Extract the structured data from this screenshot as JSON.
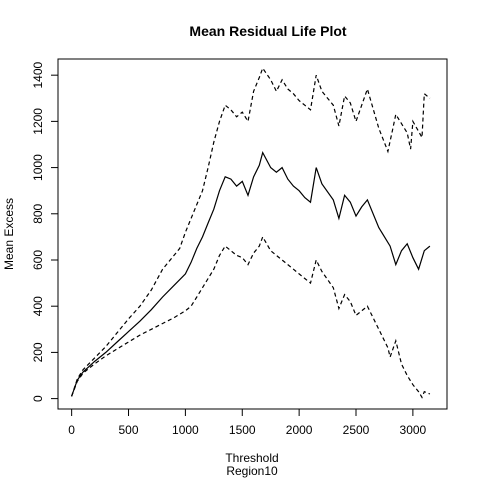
{
  "chart_data": {
    "type": "line",
    "title": "Mean Residual Life Plot",
    "xlabel": "Threshold",
    "xlabel_sub": "Region10",
    "ylabel": "Mean Excess",
    "xlim": [
      -120,
      3300
    ],
    "ylim": [
      -45,
      1470
    ],
    "x_ticks": [
      0,
      500,
      1000,
      1500,
      2000,
      2500,
      3000
    ],
    "y_ticks": [
      0,
      200,
      400,
      600,
      800,
      1000,
      1200,
      1400
    ],
    "grid": false,
    "legend": "none",
    "series": [
      {
        "role": "upper-ci",
        "line_style": "dashed",
        "points": [
          [
            0,
            10
          ],
          [
            50,
            85
          ],
          [
            100,
            125
          ],
          [
            200,
            175
          ],
          [
            300,
            225
          ],
          [
            400,
            285
          ],
          [
            500,
            345
          ],
          [
            600,
            400
          ],
          [
            700,
            470
          ],
          [
            800,
            560
          ],
          [
            900,
            620
          ],
          [
            950,
            650
          ],
          [
            1000,
            720
          ],
          [
            1050,
            780
          ],
          [
            1100,
            840
          ],
          [
            1150,
            900
          ],
          [
            1200,
            1000
          ],
          [
            1250,
            1110
          ],
          [
            1300,
            1200
          ],
          [
            1350,
            1270
          ],
          [
            1400,
            1250
          ],
          [
            1450,
            1220
          ],
          [
            1500,
            1240
          ],
          [
            1550,
            1200
          ],
          [
            1600,
            1330
          ],
          [
            1650,
            1390
          ],
          [
            1680,
            1430
          ],
          [
            1750,
            1380
          ],
          [
            1800,
            1330
          ],
          [
            1850,
            1380
          ],
          [
            1900,
            1340
          ],
          [
            1950,
            1320
          ],
          [
            2000,
            1290
          ],
          [
            2050,
            1270
          ],
          [
            2100,
            1250
          ],
          [
            2150,
            1400
          ],
          [
            2200,
            1330
          ],
          [
            2300,
            1270
          ],
          [
            2350,
            1180
          ],
          [
            2400,
            1310
          ],
          [
            2450,
            1280
          ],
          [
            2500,
            1200
          ],
          [
            2550,
            1270
          ],
          [
            2600,
            1340
          ],
          [
            2700,
            1170
          ],
          [
            2780,
            1070
          ],
          [
            2820,
            1160
          ],
          [
            2850,
            1230
          ],
          [
            2950,
            1150
          ],
          [
            2980,
            1080
          ],
          [
            3000,
            1200
          ],
          [
            3080,
            1130
          ],
          [
            3100,
            1320
          ],
          [
            3150,
            1300
          ]
        ]
      },
      {
        "role": "mean-excess",
        "line_style": "solid",
        "points": [
          [
            0,
            10
          ],
          [
            50,
            80
          ],
          [
            100,
            115
          ],
          [
            200,
            160
          ],
          [
            300,
            200
          ],
          [
            400,
            245
          ],
          [
            500,
            290
          ],
          [
            600,
            335
          ],
          [
            700,
            385
          ],
          [
            800,
            440
          ],
          [
            900,
            490
          ],
          [
            1000,
            540
          ],
          [
            1050,
            590
          ],
          [
            1100,
            650
          ],
          [
            1150,
            700
          ],
          [
            1200,
            760
          ],
          [
            1250,
            820
          ],
          [
            1300,
            900
          ],
          [
            1350,
            960
          ],
          [
            1400,
            950
          ],
          [
            1450,
            920
          ],
          [
            1500,
            940
          ],
          [
            1550,
            880
          ],
          [
            1600,
            960
          ],
          [
            1650,
            1010
          ],
          [
            1680,
            1065
          ],
          [
            1750,
            1000
          ],
          [
            1800,
            980
          ],
          [
            1850,
            1000
          ],
          [
            1900,
            950
          ],
          [
            1950,
            920
          ],
          [
            2000,
            900
          ],
          [
            2050,
            870
          ],
          [
            2100,
            850
          ],
          [
            2150,
            1000
          ],
          [
            2200,
            930
          ],
          [
            2300,
            860
          ],
          [
            2350,
            780
          ],
          [
            2400,
            880
          ],
          [
            2450,
            850
          ],
          [
            2500,
            790
          ],
          [
            2550,
            830
          ],
          [
            2600,
            860
          ],
          [
            2700,
            740
          ],
          [
            2800,
            660
          ],
          [
            2850,
            580
          ],
          [
            2900,
            640
          ],
          [
            2950,
            670
          ],
          [
            3000,
            610
          ],
          [
            3050,
            560
          ],
          [
            3100,
            640
          ],
          [
            3150,
            660
          ]
        ]
      },
      {
        "role": "lower-ci",
        "line_style": "dashed",
        "points": [
          [
            0,
            10
          ],
          [
            50,
            75
          ],
          [
            100,
            110
          ],
          [
            200,
            150
          ],
          [
            300,
            185
          ],
          [
            400,
            215
          ],
          [
            500,
            245
          ],
          [
            600,
            275
          ],
          [
            700,
            300
          ],
          [
            800,
            325
          ],
          [
            900,
            350
          ],
          [
            1000,
            380
          ],
          [
            1050,
            400
          ],
          [
            1100,
            440
          ],
          [
            1150,
            480
          ],
          [
            1200,
            520
          ],
          [
            1250,
            560
          ],
          [
            1300,
            620
          ],
          [
            1350,
            660
          ],
          [
            1400,
            640
          ],
          [
            1450,
            620
          ],
          [
            1500,
            610
          ],
          [
            1550,
            580
          ],
          [
            1600,
            630
          ],
          [
            1650,
            660
          ],
          [
            1680,
            700
          ],
          [
            1750,
            640
          ],
          [
            1800,
            620
          ],
          [
            1850,
            600
          ],
          [
            1900,
            580
          ],
          [
            1950,
            560
          ],
          [
            2000,
            540
          ],
          [
            2050,
            520
          ],
          [
            2100,
            500
          ],
          [
            2150,
            600
          ],
          [
            2200,
            550
          ],
          [
            2300,
            480
          ],
          [
            2350,
            390
          ],
          [
            2400,
            450
          ],
          [
            2450,
            420
          ],
          [
            2500,
            360
          ],
          [
            2550,
            380
          ],
          [
            2600,
            400
          ],
          [
            2700,
            300
          ],
          [
            2780,
            220
          ],
          [
            2800,
            180
          ],
          [
            2850,
            250
          ],
          [
            2900,
            150
          ],
          [
            2950,
            100
          ],
          [
            3000,
            60
          ],
          [
            3050,
            30
          ],
          [
            3080,
            5
          ],
          [
            3100,
            30
          ],
          [
            3150,
            20
          ]
        ]
      }
    ]
  }
}
